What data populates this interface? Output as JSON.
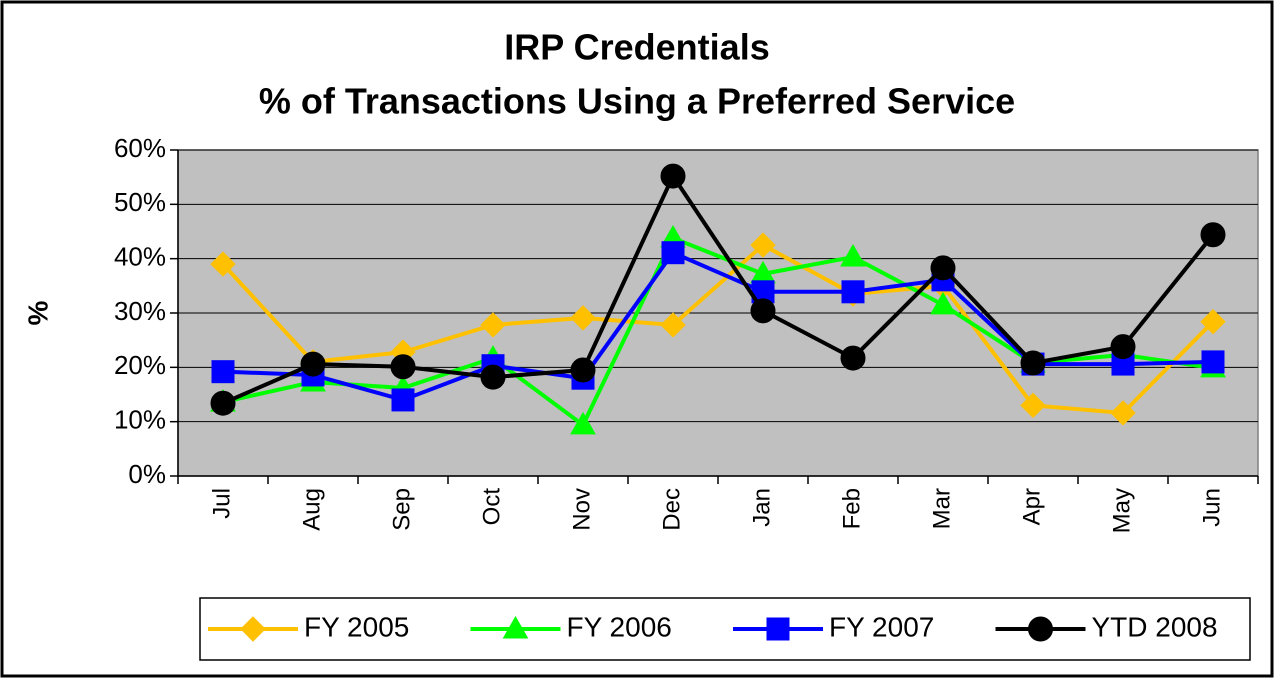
{
  "chart_data": {
    "type": "line",
    "title": "IRP Credentials",
    "subtitle": "% of Transactions Using a Preferred Service",
    "y_label": "%",
    "categories": [
      "Jul",
      "Aug",
      "Sep",
      "Oct",
      "Nov",
      "Dec",
      "Jan",
      "Feb",
      "Mar",
      "Apr",
      "May",
      "Jun"
    ],
    "series": [
      {
        "name": "FY 2005",
        "color": "#ffc000",
        "marker": "diamond",
        "values": [
          39,
          21,
          22.8,
          27.8,
          29.1,
          27.8,
          42.5,
          33.5,
          35,
          13,
          11.6,
          28.4
        ]
      },
      {
        "name": "FY 2006",
        "color": "#00ff00",
        "marker": "triangle",
        "values": [
          13.6,
          17.3,
          16.2,
          21.7,
          9.4,
          43.8,
          37.2,
          40.3,
          31.5,
          20.8,
          22.3,
          19.9
        ]
      },
      {
        "name": "FY 2007",
        "color": "#0000ff",
        "marker": "square",
        "values": [
          19.2,
          18.6,
          14,
          20.3,
          18,
          41.1,
          33.9,
          33.9,
          36.1,
          20.6,
          20.6,
          21
        ]
      },
      {
        "name": "YTD 2008",
        "color": "#000000",
        "marker": "circle",
        "values": [
          13.4,
          20.6,
          20.1,
          18.2,
          19.5,
          55.2,
          30.4,
          21.7,
          38.3,
          20.8,
          23.8,
          44.4
        ]
      }
    ],
    "ylim": [
      0,
      60
    ],
    "yticks": [
      {
        "value": 0,
        "label": "0%"
      },
      {
        "value": 10,
        "label": "10%"
      },
      {
        "value": 20,
        "label": "20%"
      },
      {
        "value": 30,
        "label": "30%"
      },
      {
        "value": 40,
        "label": "40%"
      },
      {
        "value": 50,
        "label": "50%"
      },
      {
        "value": 60,
        "label": "60%"
      }
    ],
    "grid": true,
    "plot_background": "#c0c0c0",
    "legend": "bottom"
  }
}
